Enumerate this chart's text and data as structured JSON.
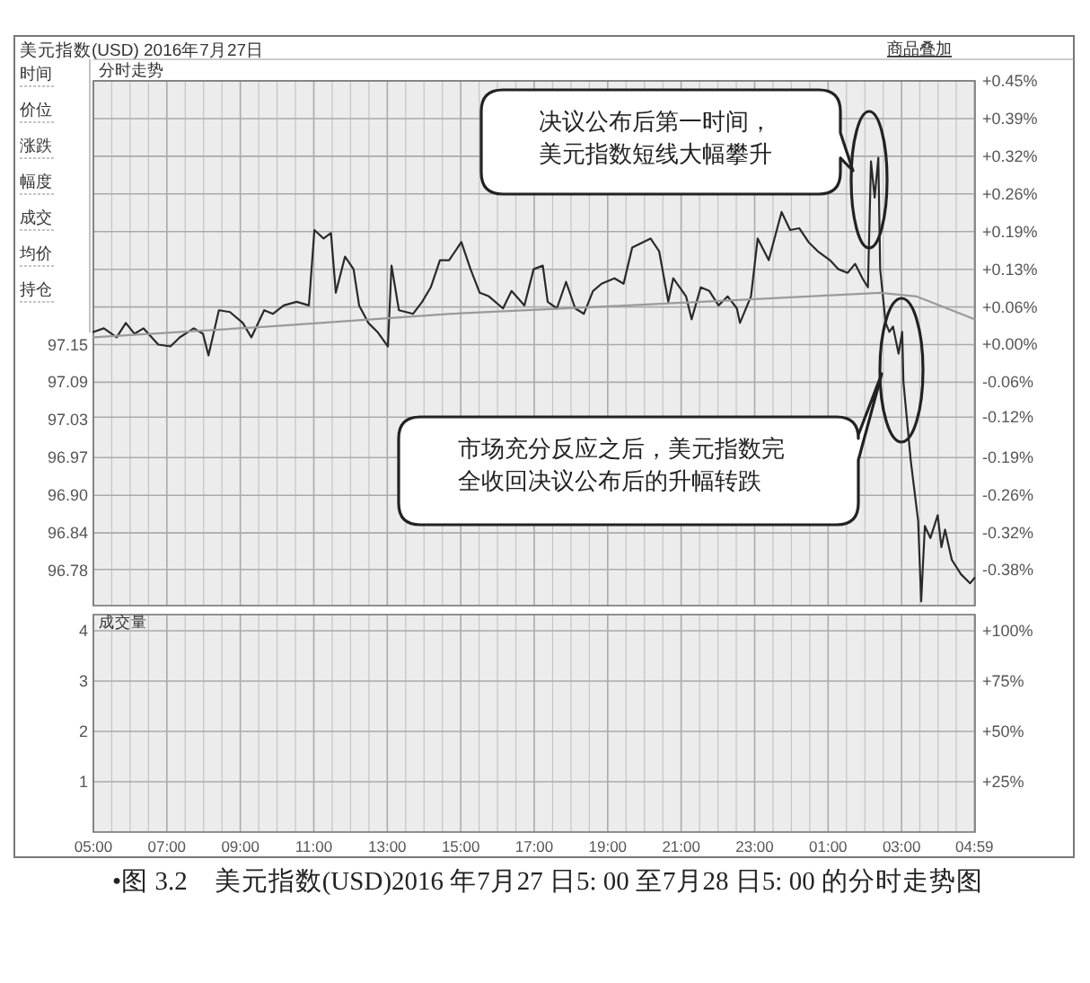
{
  "chart_data": [
    {
      "type": "line",
      "title": "美元指数(USD) 2016年7月27日",
      "subtitle": "分时走势",
      "x": [
        "2016-07-27T05:00",
        "2016-07-27T05:17",
        "2016-07-27T05:38",
        "2016-07-27T05:53",
        "2016-07-27T06:07",
        "2016-07-27T06:22",
        "2016-07-27T06:46",
        "2016-07-27T07:06",
        "2016-07-27T07:21",
        "2016-07-27T07:44",
        "2016-07-27T07:59",
        "2016-07-27T08:08",
        "2016-07-27T08:25",
        "2016-07-27T08:43",
        "2016-07-27T09:04",
        "2016-07-27T09:18",
        "2016-07-27T09:39",
        "2016-07-27T09:53",
        "2016-07-27T10:11",
        "2016-07-27T10:32",
        "2016-07-27T10:52",
        "2016-07-27T11:01",
        "2016-07-27T11:16",
        "2016-07-27T11:28",
        "2016-07-27T11:36",
        "2016-07-27T11:51",
        "2016-07-27T12:05",
        "2016-07-27T12:14",
        "2016-07-27T12:29",
        "2016-07-27T12:44",
        "2016-07-27T13:01",
        "2016-07-27T13:07",
        "2016-07-27T13:19",
        "2016-07-27T13:42",
        "2016-07-27T13:57",
        "2016-07-27T14:11",
        "2016-07-27T14:26",
        "2016-07-27T14:41",
        "2016-07-27T15:01",
        "2016-07-27T15:16",
        "2016-07-27T15:31",
        "2016-07-27T15:46",
        "2016-07-27T16:09",
        "2016-07-27T16:23",
        "2016-07-27T16:44",
        "2016-07-27T16:59",
        "2016-07-27T17:14",
        "2016-07-27T17:22",
        "2016-07-27T17:37",
        "2016-07-27T17:52",
        "2016-07-27T18:07",
        "2016-07-27T18:21",
        "2016-07-27T18:36",
        "2016-07-27T18:50",
        "2016-07-27T19:11",
        "2016-07-27T19:26",
        "2016-07-27T19:40",
        "2016-07-27T19:58",
        "2016-07-27T20:10",
        "2016-07-27T20:24",
        "2016-07-27T20:39",
        "2016-07-27T20:47",
        "2016-07-27T21:08",
        "2016-07-27T21:17",
        "2016-07-27T21:32",
        "2016-07-27T21:46",
        "2016-07-27T22:01",
        "2016-07-27T22:16",
        "2016-07-27T22:31",
        "2016-07-27T22:36",
        "2016-07-27T22:54",
        "2016-07-27T23:05",
        "2016-07-27T23:23",
        "2016-07-27T23:44",
        "2016-07-27T23:58",
        "2016-07-28T00:13",
        "2016-07-28T00:28",
        "2016-07-28T00:43",
        "2016-07-28T01:03",
        "2016-07-28T01:17",
        "2016-07-28T01:32",
        "2016-07-28T01:44",
        "2016-07-28T01:56",
        "2016-07-28T02:05",
        "2016-07-28T02:10",
        "2016-07-28T02:16",
        "2016-07-28T02:22",
        "2016-07-28T02:25",
        "2016-07-28T02:31",
        "2016-07-28T02:34",
        "2016-07-28T02:40",
        "2016-07-28T02:46",
        "2016-07-28T02:55",
        "2016-07-28T03:01",
        "2016-07-28T03:03",
        "2016-07-28T03:15",
        "2016-07-28T03:27",
        "2016-07-28T03:32",
        "2016-07-28T03:38",
        "2016-07-28T03:47",
        "2016-07-28T03:59",
        "2016-07-28T04:05",
        "2016-07-28T04:11",
        "2016-07-28T04:22",
        "2016-07-28T04:37",
        "2016-07-28T04:52",
        "2016-07-28T04:59"
      ],
      "series": [
        {
          "color": "#2a2a2a",
          "values": [
            97.174,
            97.18,
            97.165,
            97.189,
            97.171,
            97.18,
            97.153,
            97.15,
            97.165,
            97.18,
            97.171,
            97.135,
            97.21,
            97.207,
            97.189,
            97.165,
            97.21,
            97.204,
            97.218,
            97.224,
            97.218,
            97.343,
            97.329,
            97.338,
            97.239,
            97.299,
            97.278,
            97.218,
            97.189,
            97.174,
            97.15,
            97.284,
            97.21,
            97.204,
            97.224,
            97.248,
            97.293,
            97.293,
            97.323,
            97.278,
            97.239,
            97.233,
            97.213,
            97.242,
            97.218,
            97.278,
            97.284,
            97.224,
            97.213,
            97.257,
            97.213,
            97.204,
            97.242,
            97.254,
            97.263,
            97.254,
            97.314,
            97.323,
            97.329,
            97.308,
            97.224,
            97.263,
            97.233,
            97.195,
            97.248,
            97.242,
            97.218,
            97.233,
            97.213,
            97.189,
            97.233,
            97.329,
            97.293,
            97.373,
            97.343,
            97.346,
            97.323,
            97.308,
            97.293,
            97.278,
            97.272,
            97.287,
            97.263,
            97.248,
            97.457,
            97.397,
            97.463,
            97.278,
            97.218,
            97.189,
            97.174,
            97.183,
            97.138,
            97.174,
            97.091,
            96.96,
            96.861,
            96.727,
            96.852,
            96.832,
            96.87,
            96.817,
            96.846,
            96.796,
            96.772,
            96.757,
            96.766
          ]
        },
        {
          "color": "#9a9a9a",
          "x": [
            "2016-07-27T05:00",
            "2016-07-27T09:47",
            "2016-07-27T14:41",
            "2016-07-27T19:34",
            "2016-07-28T00:28",
            "2016-07-28T02:25",
            "2016-07-28T03:24",
            "2016-07-28T04:59"
          ],
          "values": [
            97.165,
            97.183,
            97.204,
            97.218,
            97.233,
            97.239,
            97.233,
            97.195
          ]
        }
      ],
      "xlim": [
        "2016-07-27T05:00",
        "2016-07-28T05:00"
      ],
      "xticks": [
        {
          "value": "2016-07-27T05:00",
          "label": null
        },
        {
          "value": "2016-07-27T07:00",
          "label": null
        },
        {
          "value": "2016-07-27T09:00",
          "label": null
        },
        {
          "value": "2016-07-27T11:00",
          "label": null
        },
        {
          "value": "2016-07-27T13:00",
          "label": null
        },
        {
          "value": "2016-07-27T15:00",
          "label": null
        },
        {
          "value": "2016-07-27T17:00",
          "label": null
        },
        {
          "value": "2016-07-27T19:00",
          "label": null
        },
        {
          "value": "2016-07-27T21:00",
          "label": null
        },
        {
          "value": "2016-07-27T23:00",
          "label": null
        },
        {
          "value": "2016-07-28T01:00",
          "label": null
        },
        {
          "value": "2016-07-28T03:00",
          "label": null
        },
        {
          "value": "2016-07-28T04:59",
          "label": null
        }
      ],
      "ylim": [
        96.72,
        97.5905
      ],
      "yticks": [
        {
          "value": 97.153,
          "label": "97.15"
        },
        {
          "value": 97.0905,
          "label": "97.09"
        },
        {
          "value": 97.028,
          "label": "97.03"
        },
        {
          "value": 96.9655,
          "label": "96.97"
        },
        {
          "value": 96.903,
          "label": "96.90"
        },
        {
          "value": 96.8405,
          "label": "96.84"
        },
        {
          "value": 96.778,
          "label": "96.78"
        }
      ],
      "y2lim": [
        -0.4457,
        0.4503
      ],
      "y2ticks": [
        {
          "value": 0.4503,
          "label": "+0.45%"
        },
        {
          "value": 0.3859,
          "label": "+0.39%"
        },
        {
          "value": 0.3216,
          "label": "+0.32%"
        },
        {
          "value": 0.2573,
          "label": "+0.26%"
        },
        {
          "value": 0.193,
          "label": "+0.19%"
        },
        {
          "value": 0.1286,
          "label": "+0.13%"
        },
        {
          "value": 0.0643,
          "label": "+0.06%"
        },
        {
          "value": 0,
          "label": "+0.00%"
        },
        {
          "value": -0.0643,
          "label": "-0.06%"
        },
        {
          "value": -0.124,
          "label": "-0.12%"
        },
        {
          "value": -0.193,
          "label": "-0.19%"
        },
        {
          "value": -0.2573,
          "label": "-0.26%"
        },
        {
          "value": -0.3216,
          "label": "-0.32%"
        },
        {
          "value": -0.384,
          "label": "-0.38%"
        }
      ],
      "tick_labels": "y",
      "grid": true,
      "annotations": [
        "时间",
        "价位",
        "涨跌",
        "幅度",
        "成交",
        "均价",
        "持仓",
        "商品叠加",
        "决议公布后第一时间，美元指数短线大幅攀升",
        "市场充分反应之后，美元指数完全收回决议公布后的升幅转跌"
      ]
    },
    {
      "type": "line",
      "ylabel": "成交量",
      "xlim": [
        "2016-07-27T05:00",
        "2016-07-28T05:00"
      ],
      "xticks": [
        {
          "value": "2016-07-27T05:00",
          "label": "05:00"
        },
        {
          "value": "2016-07-27T07:00",
          "label": "07:00"
        },
        {
          "value": "2016-07-27T09:00",
          "label": "09:00"
        },
        {
          "value": "2016-07-27T11:00",
          "label": "11:00"
        },
        {
          "value": "2016-07-27T13:00",
          "label": "13:00"
        },
        {
          "value": "2016-07-27T15:00",
          "label": "15:00"
        },
        {
          "value": "2016-07-27T17:00",
          "label": "17:00"
        },
        {
          "value": "2016-07-27T19:00",
          "label": "19:00"
        },
        {
          "value": "2016-07-27T21:00",
          "label": "21:00"
        },
        {
          "value": "2016-07-27T23:00",
          "label": "23:00"
        },
        {
          "value": "2016-07-28T01:00",
          "label": "01:00"
        },
        {
          "value": "2016-07-28T03:00",
          "label": "03:00"
        },
        {
          "value": "2016-07-28T04:59",
          "label": "04:59"
        }
      ],
      "ylim": [
        0,
        4.32
      ],
      "yticks": [
        1,
        2,
        3,
        4
      ],
      "y2lim": [
        0,
        108
      ],
      "y2ticks": [
        {
          "value": 25,
          "label": "+25%"
        },
        {
          "value": 50,
          "label": "+50%"
        },
        {
          "value": 75,
          "label": "+75%"
        },
        {
          "value": 100,
          "label": "+100%"
        }
      ],
      "grid": true,
      "annotations": [
        "•图 3.2　美元指数(USD)2016 年7月27 日5: 00 至7月28 日5: 00 的分时走势图"
      ]
    }
  ]
}
